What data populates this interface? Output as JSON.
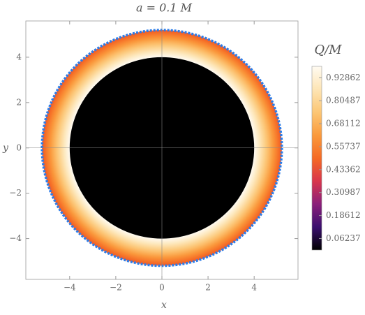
{
  "chart_data": {
    "type": "density",
    "title": "a = 0.1 M",
    "x_label": "x",
    "y_label": "y",
    "xlim": [
      -5.9,
      5.9
    ],
    "ylim": [
      -5.8,
      5.6
    ],
    "xticks": [
      {
        "value": -4,
        "label": "−4"
      },
      {
        "value": -2,
        "label": "−2"
      },
      0,
      2,
      4
    ],
    "yticks": [
      {
        "value": -4,
        "label": "−4"
      },
      {
        "value": -2,
        "label": "−2"
      },
      0,
      2,
      4
    ],
    "shadow": {
      "radius": 4,
      "color": "#000000"
    },
    "disk": {
      "inner_radius": 4,
      "outer_radius": 5.2,
      "q_inner": 0.99,
      "q_outer": 0.45
    },
    "boundary": {
      "radius": 5.2,
      "color": "#2b7de9"
    },
    "colorbar": {
      "title": "Q/M",
      "lim": [
        0,
        0.99
      ],
      "ticks": [
        0.06237,
        0.18612,
        0.30987,
        0.43362,
        0.55737,
        0.68112,
        0.80487,
        0.92862
      ],
      "colormap": [
        "#000000",
        "#3a0f6e",
        "#8a1f7a",
        "#d8364c",
        "#f56a24",
        "#fa9a3c",
        "#fcc675",
        "#fde5b5",
        "#fffbf2"
      ]
    }
  }
}
